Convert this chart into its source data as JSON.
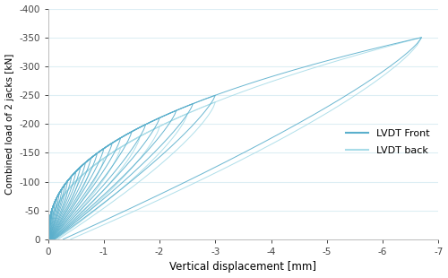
{
  "xlabel": "Vertical displacement [mm]",
  "ylabel": "Combined load of 2 jacks [kN]",
  "color_front": "#5aafcc",
  "color_back": "#a8dce8",
  "legend_front": "LVDT Front",
  "legend_back": "LVDT back",
  "bg_color": "#ffffff",
  "grid_color": "#ddeef4",
  "max_disp": -6.7,
  "max_load": -350
}
